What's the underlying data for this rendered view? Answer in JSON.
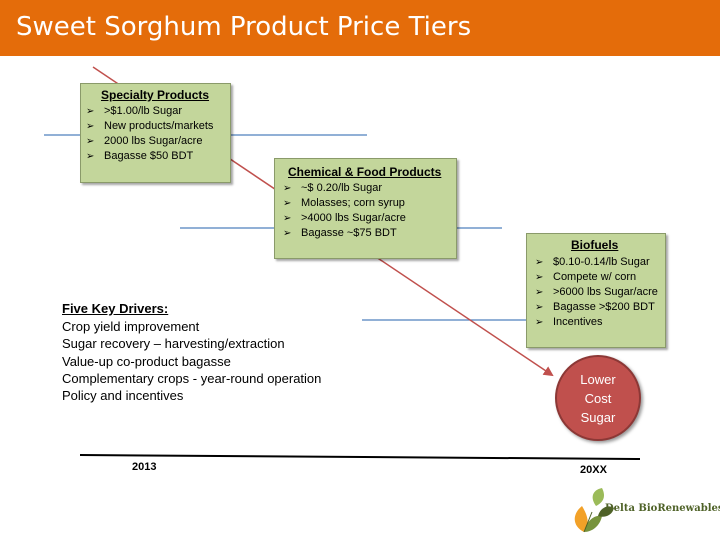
{
  "header": {
    "title": "Sweet Sorghum Product Price Tiers",
    "color": "#E46C0A"
  },
  "tiers": [
    {
      "heading": "Specialty Products",
      "bullets": [
        ">$1.00/lb Sugar",
        "New products/markets",
        "2000 lbs Sugar/acre",
        "Bagasse $50 BDT"
      ]
    },
    {
      "heading": "Chemical & Food Products",
      "bullets": [
        "~$ 0.20/lb Sugar",
        "Molasses; corn syrup",
        ">4000 lbs Sugar/acre",
        "Bagasse ~$75 BDT"
      ]
    },
    {
      "heading": "Biofuels",
      "bullets": [
        "$0.10-0.14/lb Sugar",
        "Compete w/ corn",
        ">6000 lbs Sugar/acre",
        "Bagasse >$200 BDT",
        "Incentives"
      ]
    }
  ],
  "tier_color": "#C3D69B",
  "drivers": {
    "heading": "Five Key Drivers:",
    "items": [
      "Crop yield improvement",
      "Sugar recovery – harvesting/extraction",
      "Value-up co-product bagasse",
      "Complementary crops - year-round operation",
      "Policy and incentives"
    ]
  },
  "target": {
    "lines": [
      "Lower",
      "Cost",
      "Sugar"
    ],
    "color": "#C0504D"
  },
  "timeline": {
    "start": "2013",
    "end": "20XX"
  },
  "logo": {
    "text": "Delta BioRenewables",
    "icon": "leaves-logo-icon"
  }
}
